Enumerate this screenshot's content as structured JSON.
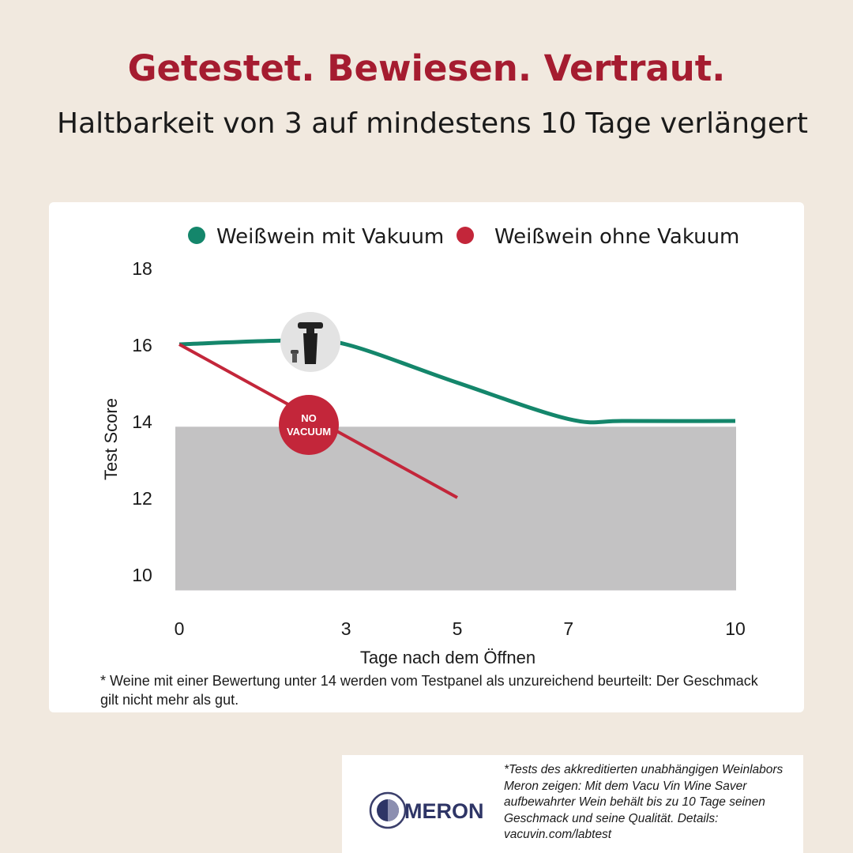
{
  "header": {
    "title": "Getestet. Bewiesen. Vertraut.",
    "subtitle": "Haltbarkeit von 3 auf mindestens 10 Tage verlängert"
  },
  "colors": {
    "title": "#a51c30",
    "green": "#14866b",
    "red": "#c3263a",
    "threshold": "#c3c2c3"
  },
  "chart_data": {
    "type": "line",
    "xlabel": "Tage nach dem Öffnen",
    "ylabel": "Test Score",
    "xticks": [
      "0",
      "3",
      "5",
      "7",
      "10"
    ],
    "yticks": [
      "18",
      "16",
      "14",
      "12",
      "10"
    ],
    "xlim": [
      0,
      10
    ],
    "ylim": [
      9,
      18
    ],
    "grid": false,
    "legend_position": "top",
    "threshold_band": {
      "from": 9,
      "to": 13.85
    },
    "series": [
      {
        "name": "Weißwein mit Vakuum",
        "color": "#14866b",
        "x": [
          0,
          2,
          3,
          5,
          7,
          8,
          10
        ],
        "y": [
          16,
          16.1,
          16,
          15.0,
          14.05,
          14.0,
          14.0
        ]
      },
      {
        "name": "Weißwein ohne Vakuum",
        "color": "#c3263a",
        "x": [
          0,
          5
        ],
        "y": [
          16,
          12
        ]
      }
    ],
    "annotations": {
      "pump_icon": "vacuum-pump-icon",
      "no_vacuum_badge": [
        "NO",
        "VACUUM"
      ]
    }
  },
  "footnote": "* Weine mit einer Bewertung unter 14 werden vom Testpanel als unzureichend beurteilt: Der Geschmack gilt nicht mehr als gut.",
  "meron": {
    "logo_text": "MERON",
    "note": "*Tests des akkreditierten unabhängigen Weinlabors Meron zeigen: Mit dem Vacu Vin Wine Saver aufbewahrter Wein behält bis zu 10 Tage seinen Geschmack und seine Qualität. Details: vacuvin.com/labtest"
  }
}
